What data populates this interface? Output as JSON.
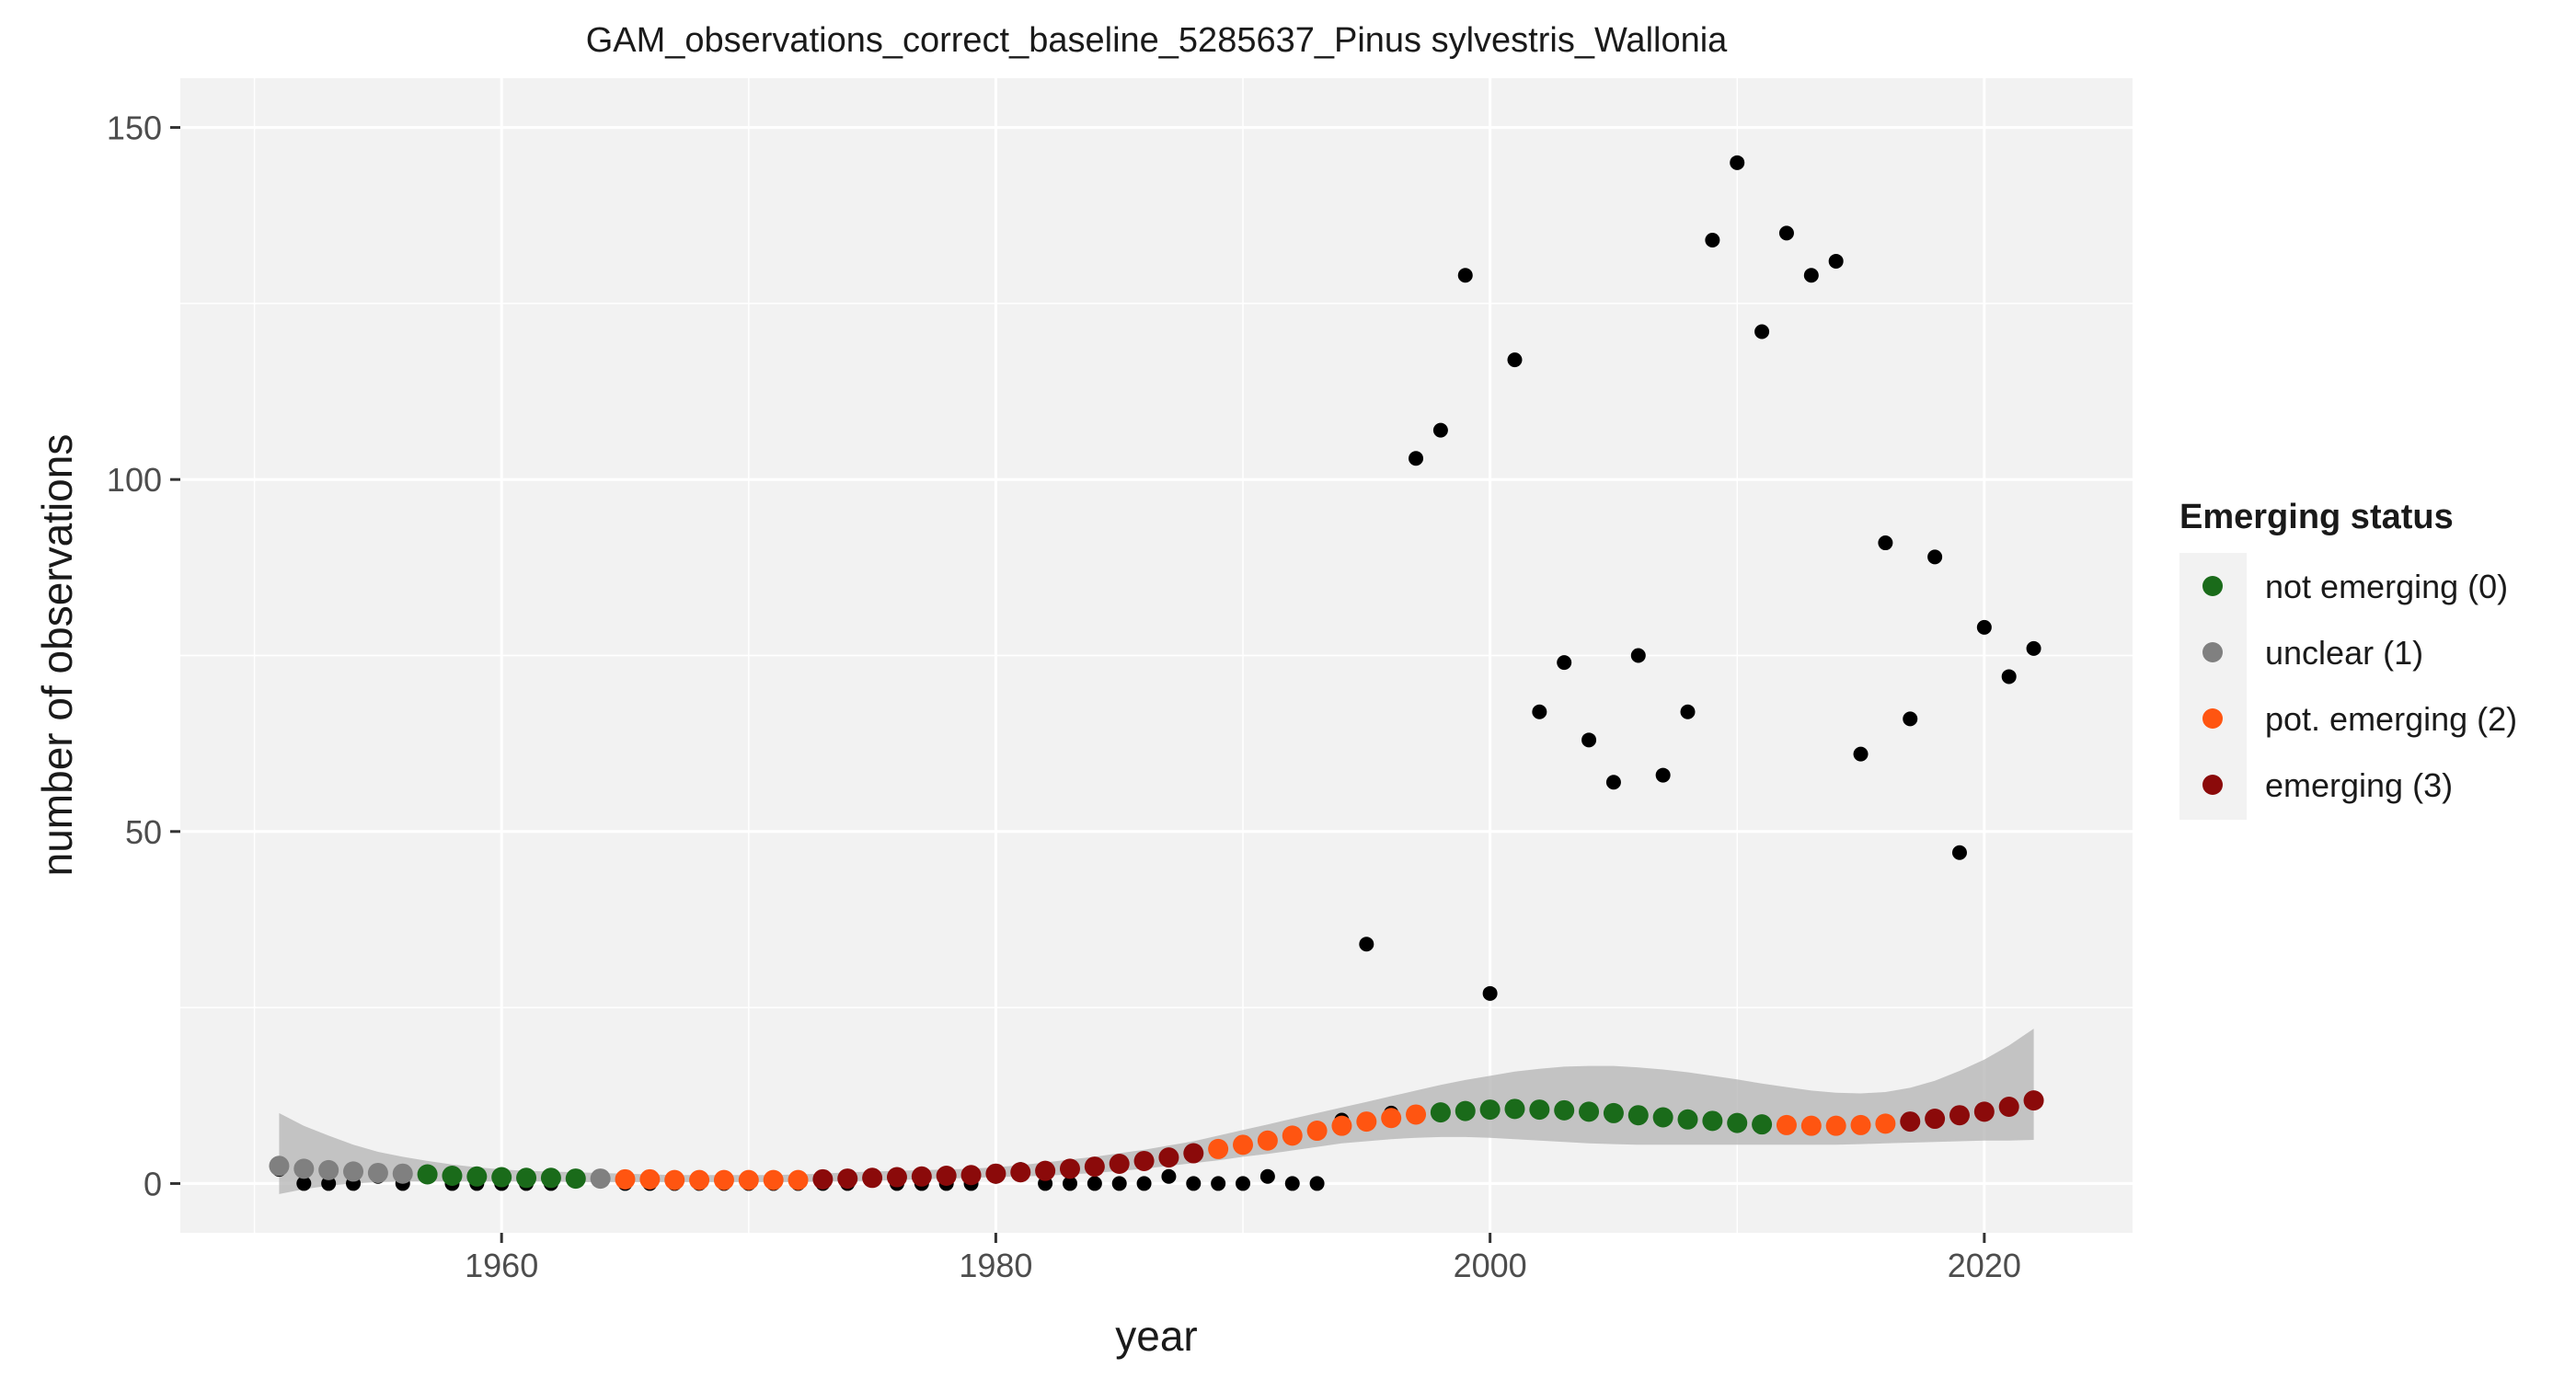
{
  "chart_data": {
    "type": "scatter",
    "title": "GAM_observations_correct_baseline_5285637_Pinus sylvestris_Wallonia",
    "xlabel": "year",
    "ylabel": "number of observations",
    "xlim": [
      1947,
      2026
    ],
    "ylim": [
      -7,
      157
    ],
    "x_ticks": [
      1960,
      1980,
      2000,
      2020
    ],
    "y_ticks": [
      0,
      50,
      100,
      150
    ],
    "grid": true,
    "legend_position": "right",
    "legend": {
      "title": "Emerging status",
      "items": [
        {
          "label": "not emerging (0)",
          "color": "#1a6b1a",
          "status": 0
        },
        {
          "label": "unclear (1)",
          "color": "#808080",
          "status": 1
        },
        {
          "label": "pot. emerging (2)",
          "color": "#ff5511",
          "status": 2
        },
        {
          "label": "emerging (3)",
          "color": "#8b0a0a",
          "status": 3
        }
      ]
    },
    "observations": {
      "color": "#000000",
      "x": [
        1951,
        1952,
        1953,
        1954,
        1955,
        1956,
        1957,
        1958,
        1959,
        1960,
        1961,
        1962,
        1963,
        1964,
        1965,
        1966,
        1967,
        1968,
        1969,
        1970,
        1971,
        1972,
        1973,
        1974,
        1975,
        1976,
        1977,
        1978,
        1979,
        1980,
        1981,
        1982,
        1983,
        1984,
        1985,
        1986,
        1987,
        1988,
        1989,
        1990,
        1991,
        1992,
        1993,
        1994,
        1995,
        1996,
        1997,
        1998,
        1999,
        2000,
        2001,
        2002,
        2003,
        2004,
        2005,
        2006,
        2007,
        2008,
        2009,
        2010,
        2011,
        2012,
        2013,
        2014,
        2015,
        2016,
        2017,
        2018,
        2019,
        2020,
        2021,
        2022
      ],
      "y": [
        2,
        0,
        0,
        0,
        1,
        0,
        1,
        0,
        0,
        0,
        0,
        0,
        1,
        1,
        0,
        0,
        0,
        0,
        0,
        0,
        0,
        0,
        0,
        0,
        1,
        0,
        0,
        0,
        0,
        1,
        2,
        0,
        0,
        0,
        0,
        0,
        1,
        0,
        0,
        0,
        1,
        0,
        0,
        9,
        34,
        10,
        103,
        107,
        129,
        27,
        117,
        67,
        74,
        63,
        57,
        75,
        58,
        67,
        134,
        145,
        121,
        135,
        129,
        131,
        61,
        91,
        66,
        89,
        47,
        79,
        72,
        76
      ]
    },
    "gam_fit": {
      "x": [
        1951,
        1952,
        1953,
        1954,
        1955,
        1956,
        1957,
        1958,
        1959,
        1960,
        1961,
        1962,
        1963,
        1964,
        1965,
        1966,
        1967,
        1968,
        1969,
        1970,
        1971,
        1972,
        1973,
        1974,
        1975,
        1976,
        1977,
        1978,
        1979,
        1980,
        1981,
        1982,
        1983,
        1984,
        1985,
        1986,
        1987,
        1988,
        1989,
        1990,
        1991,
        1992,
        1993,
        1994,
        1995,
        1996,
        1997,
        1998,
        1999,
        2000,
        2001,
        2002,
        2003,
        2004,
        2005,
        2006,
        2007,
        2008,
        2009,
        2010,
        2011,
        2012,
        2013,
        2014,
        2015,
        2016,
        2017,
        2018,
        2019,
        2020,
        2021,
        2022
      ],
      "y": [
        2.5,
        2.1,
        1.9,
        1.7,
        1.5,
        1.4,
        1.3,
        1.1,
        1.0,
        0.9,
        0.8,
        0.8,
        0.7,
        0.7,
        0.6,
        0.6,
        0.5,
        0.5,
        0.5,
        0.5,
        0.5,
        0.5,
        0.6,
        0.7,
        0.8,
        0.9,
        1.0,
        1.1,
        1.2,
        1.4,
        1.6,
        1.8,
        2.1,
        2.4,
        2.8,
        3.2,
        3.7,
        4.3,
        4.9,
        5.5,
        6.1,
        6.8,
        7.5,
        8.2,
        8.8,
        9.3,
        9.8,
        10.1,
        10.3,
        10.5,
        10.6,
        10.5,
        10.4,
        10.2,
        10.0,
        9.7,
        9.4,
        9.1,
        8.9,
        8.6,
        8.4,
        8.3,
        8.2,
        8.2,
        8.3,
        8.5,
        8.8,
        9.2,
        9.7,
        10.2,
        10.9,
        11.8
      ],
      "status": [
        1,
        1,
        1,
        1,
        1,
        1,
        0,
        0,
        0,
        0,
        0,
        0,
        0,
        1,
        2,
        2,
        2,
        2,
        2,
        2,
        2,
        2,
        3,
        3,
        3,
        3,
        3,
        3,
        3,
        3,
        3,
        3,
        3,
        3,
        3,
        3,
        3,
        3,
        2,
        2,
        2,
        2,
        2,
        2,
        2,
        2,
        2,
        0,
        0,
        0,
        0,
        0,
        0,
        0,
        0,
        0,
        0,
        0,
        0,
        0,
        0,
        2,
        2,
        2,
        2,
        2,
        3,
        3,
        3,
        3,
        3,
        3
      ],
      "ci_lower": [
        -1.5,
        -0.8,
        -0.3,
        0.0,
        0.2,
        0.3,
        0.3,
        0.3,
        0.3,
        0.3,
        0.3,
        0.3,
        0.2,
        0.2,
        0.2,
        0.2,
        0.2,
        0.2,
        0.2,
        0.2,
        0.2,
        0.2,
        0.3,
        0.3,
        0.4,
        0.5,
        0.6,
        0.7,
        0.8,
        0.9,
        1.0,
        1.1,
        1.3,
        1.5,
        1.8,
        2.1,
        2.5,
        2.9,
        3.3,
        3.8,
        4.2,
        4.7,
        5.2,
        5.7,
        6.0,
        6.3,
        6.5,
        6.6,
        6.6,
        6.5,
        6.3,
        6.1,
        5.9,
        5.7,
        5.6,
        5.5,
        5.5,
        5.5,
        5.5,
        5.5,
        5.5,
        5.5,
        5.5,
        5.5,
        5.6,
        5.7,
        5.8,
        5.9,
        6.0,
        6.1,
        6.1,
        6.2
      ],
      "ci_upper": [
        10,
        8.2,
        6.8,
        5.5,
        4.5,
        3.8,
        3.2,
        2.7,
        2.3,
        2.0,
        1.8,
        1.7,
        1.6,
        1.5,
        1.4,
        1.3,
        1.2,
        1.2,
        1.2,
        1.2,
        1.2,
        1.3,
        1.4,
        1.6,
        1.7,
        1.8,
        1.9,
        2.0,
        2.1,
        2.3,
        2.6,
        3.0,
        3.4,
        3.8,
        4.3,
        4.8,
        5.4,
        6.0,
        6.8,
        7.6,
        8.4,
        9.2,
        10.0,
        10.8,
        11.6,
        12.4,
        13.2,
        14.0,
        14.7,
        15.3,
        15.9,
        16.3,
        16.6,
        16.7,
        16.7,
        16.5,
        16.2,
        15.8,
        15.3,
        14.8,
        14.2,
        13.7,
        13.2,
        12.9,
        12.8,
        13.0,
        13.6,
        14.6,
        16.0,
        17.6,
        19.6,
        22.0
      ]
    }
  }
}
